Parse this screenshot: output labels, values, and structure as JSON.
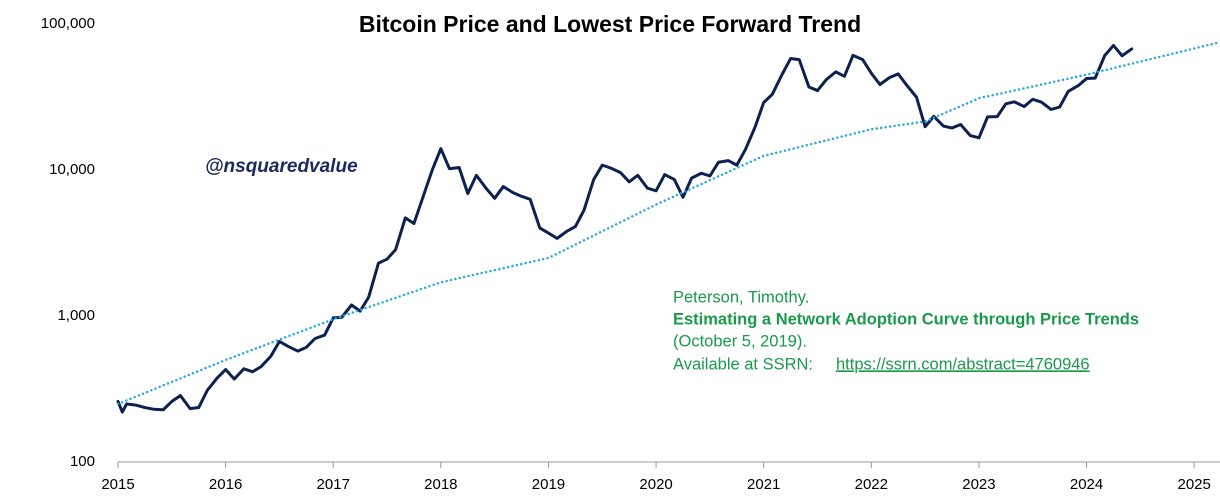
{
  "chart_data": {
    "type": "line",
    "title": "Bitcoin Price and Lowest Price Forward Trend",
    "log_y": true,
    "grid": false,
    "xlim": [
      2015,
      2025.24
    ],
    "xticks": [
      2015,
      2016,
      2017,
      2018,
      2019,
      2020,
      2021,
      2022,
      2023,
      2024,
      2025
    ],
    "ylim": [
      100,
      100000
    ],
    "yticks": [
      100,
      {
        "value": 1000,
        "label": "1,000"
      },
      {
        "value": 10000,
        "label": "10,000"
      },
      {
        "value": 100000,
        "label": "100,000"
      }
    ],
    "series": [
      {
        "color": "#0d2150",
        "style": "solid",
        "x": [
          2015.0,
          2015.04,
          2015.08,
          2015.17,
          2015.25,
          2015.33,
          2015.42,
          2015.5,
          2015.58,
          2015.67,
          2015.75,
          2015.83,
          2015.92,
          2016.0,
          2016.08,
          2016.17,
          2016.25,
          2016.33,
          2016.42,
          2016.5,
          2016.58,
          2016.67,
          2016.75,
          2016.83,
          2016.92,
          2017.0,
          2017.08,
          2017.17,
          2017.25,
          2017.33,
          2017.42,
          2017.5,
          2017.58,
          2017.67,
          2017.75,
          2017.83,
          2017.92,
          2018.0,
          2018.08,
          2018.17,
          2018.25,
          2018.33,
          2018.42,
          2018.5,
          2018.58,
          2018.67,
          2018.75,
          2018.83,
          2018.92,
          2019.0,
          2019.08,
          2019.17,
          2019.25,
          2019.33,
          2019.42,
          2019.5,
          2019.58,
          2019.67,
          2019.75,
          2019.83,
          2019.92,
          2020.0,
          2020.08,
          2020.17,
          2020.25,
          2020.33,
          2020.42,
          2020.5,
          2020.58,
          2020.67,
          2020.75,
          2020.83,
          2020.92,
          2021.0,
          2021.08,
          2021.17,
          2021.25,
          2021.33,
          2021.42,
          2021.5,
          2021.58,
          2021.67,
          2021.75,
          2021.83,
          2021.92,
          2022.0,
          2022.08,
          2022.17,
          2022.25,
          2022.33,
          2022.42,
          2022.5,
          2022.58,
          2022.67,
          2022.75,
          2022.83,
          2022.92,
          2023.0,
          2023.08,
          2023.17,
          2023.25,
          2023.33,
          2023.42,
          2023.5,
          2023.58,
          2023.67,
          2023.75,
          2023.83,
          2023.92,
          2024.0,
          2024.08,
          2024.17,
          2024.25,
          2024.33,
          2024.42
        ],
        "values": [
          260,
          220,
          250,
          245,
          236,
          230,
          228,
          260,
          285,
          232,
          236,
          310,
          375,
          430,
          370,
          435,
          415,
          450,
          530,
          670,
          620,
          575,
          610,
          700,
          740,
          970,
          980,
          1190,
          1080,
          1350,
          2300,
          2450,
          2850,
          4700,
          4300,
          6400,
          10000,
          14000,
          10200,
          10400,
          6900,
          9200,
          7500,
          6400,
          7700,
          7000,
          6600,
          6300,
          4000,
          3700,
          3400,
          3800,
          4100,
          5300,
          8600,
          10800,
          10300,
          9600,
          8300,
          9200,
          7500,
          7200,
          9300,
          8600,
          6500,
          8800,
          9500,
          9100,
          11300,
          11600,
          10800,
          13800,
          19700,
          29000,
          33000,
          45000,
          58000,
          57000,
          37000,
          35000,
          41500,
          47000,
          43800,
          61000,
          57000,
          46000,
          38500,
          43000,
          45500,
          38000,
          31500,
          19800,
          23300,
          20000,
          19400,
          20500,
          17200,
          16600,
          23100,
          23200,
          28400,
          29300,
          27200,
          30500,
          29200,
          26000,
          27000,
          34600,
          37700,
          42300,
          42600,
          61000,
          71300,
          60600,
          67500
        ]
      },
      {
        "color": "#29a8e0",
        "style": "dotted",
        "x": [
          2015,
          2016,
          2017,
          2018,
          2019,
          2020,
          2021,
          2022,
          2022.5,
          2023,
          2024,
          2025.24
        ],
        "values": [
          250,
          500,
          950,
          1700,
          2500,
          5800,
          12500,
          19000,
          21500,
          31000,
          45000,
          75000
        ]
      }
    ],
    "annotations": {
      "handle": "@nsquaredvalue",
      "citation": {
        "author": "Peterson, Timothy.",
        "title": "Estimating a Network Adoption Curve through Price Trends",
        "date": "(October 5, 2019).",
        "availability": "Available at SSRN:",
        "link": "https://ssrn.com/abstract=4760946"
      }
    }
  }
}
